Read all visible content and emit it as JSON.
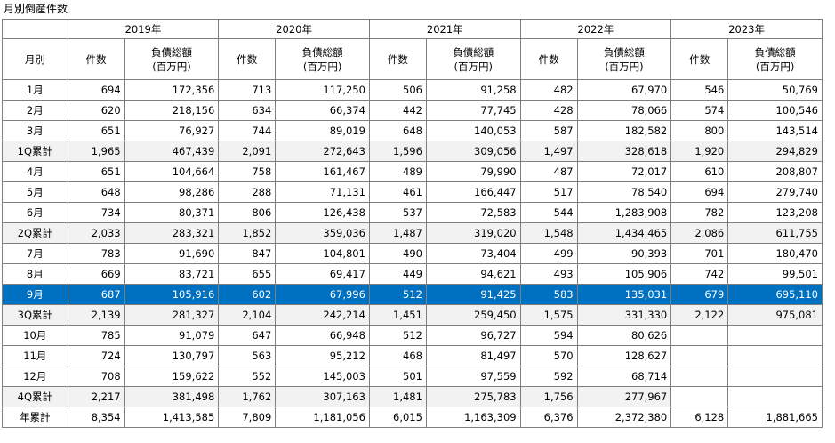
{
  "title": "月別倒産件数",
  "years": [
    "2019年",
    "2020年",
    "2021年",
    "2022年",
    "2023年"
  ],
  "header": {
    "month": "月別",
    "count": "件数",
    "amount_line1": "負債総額",
    "amount_line2": "(百万円)"
  },
  "rows": [
    {
      "label": "1月",
      "type": "normal",
      "cells": [
        [
          "694",
          "172,356"
        ],
        [
          "713",
          "117,250"
        ],
        [
          "506",
          "91,258"
        ],
        [
          "482",
          "67,970"
        ],
        [
          "546",
          "50,769"
        ]
      ]
    },
    {
      "label": "2月",
      "type": "normal",
      "cells": [
        [
          "620",
          "218,156"
        ],
        [
          "634",
          "66,374"
        ],
        [
          "442",
          "77,745"
        ],
        [
          "428",
          "78,066"
        ],
        [
          "574",
          "100,546"
        ]
      ]
    },
    {
      "label": "3月",
      "type": "normal",
      "cells": [
        [
          "651",
          "76,927"
        ],
        [
          "744",
          "89,019"
        ],
        [
          "648",
          "140,053"
        ],
        [
          "587",
          "182,582"
        ],
        [
          "800",
          "143,514"
        ]
      ]
    },
    {
      "label": "1Q累計",
      "type": "summary",
      "cells": [
        [
          "1,965",
          "467,439"
        ],
        [
          "2,091",
          "272,643"
        ],
        [
          "1,596",
          "309,056"
        ],
        [
          "1,497",
          "328,618"
        ],
        [
          "1,920",
          "294,829"
        ]
      ]
    },
    {
      "label": "4月",
      "type": "normal",
      "cells": [
        [
          "651",
          "104,664"
        ],
        [
          "758",
          "161,467"
        ],
        [
          "489",
          "79,990"
        ],
        [
          "487",
          "72,017"
        ],
        [
          "610",
          "208,807"
        ]
      ]
    },
    {
      "label": "5月",
      "type": "normal",
      "cells": [
        [
          "648",
          "98,286"
        ],
        [
          "288",
          "71,131"
        ],
        [
          "461",
          "166,447"
        ],
        [
          "517",
          "78,540"
        ],
        [
          "694",
          "279,740"
        ]
      ]
    },
    {
      "label": "6月",
      "type": "normal",
      "cells": [
        [
          "734",
          "80,371"
        ],
        [
          "806",
          "126,438"
        ],
        [
          "537",
          "72,583"
        ],
        [
          "544",
          "1,283,908"
        ],
        [
          "782",
          "123,208"
        ]
      ]
    },
    {
      "label": "2Q累計",
      "type": "summary",
      "cells": [
        [
          "2,033",
          "283,321"
        ],
        [
          "1,852",
          "359,036"
        ],
        [
          "1,487",
          "319,020"
        ],
        [
          "1,548",
          "1,434,465"
        ],
        [
          "2,086",
          "611,755"
        ]
      ]
    },
    {
      "label": "7月",
      "type": "normal",
      "cells": [
        [
          "783",
          "91,690"
        ],
        [
          "847",
          "104,801"
        ],
        [
          "490",
          "73,404"
        ],
        [
          "499",
          "90,393"
        ],
        [
          "701",
          "180,470"
        ]
      ]
    },
    {
      "label": "8月",
      "type": "normal",
      "cells": [
        [
          "669",
          "83,721"
        ],
        [
          "655",
          "69,417"
        ],
        [
          "449",
          "94,621"
        ],
        [
          "493",
          "105,906"
        ],
        [
          "742",
          "99,501"
        ]
      ]
    },
    {
      "label": "9月",
      "type": "highlight",
      "cells": [
        [
          "687",
          "105,916"
        ],
        [
          "602",
          "67,996"
        ],
        [
          "512",
          "91,425"
        ],
        [
          "583",
          "135,031"
        ],
        [
          "679",
          "695,110"
        ]
      ]
    },
    {
      "label": "3Q累計",
      "type": "summary",
      "cells": [
        [
          "2,139",
          "281,327"
        ],
        [
          "2,104",
          "242,214"
        ],
        [
          "1,451",
          "259,450"
        ],
        [
          "1,575",
          "331,330"
        ],
        [
          "2,122",
          "975,081"
        ]
      ]
    },
    {
      "label": "10月",
      "type": "normal",
      "cells": [
        [
          "785",
          "91,079"
        ],
        [
          "647",
          "66,948"
        ],
        [
          "512",
          "96,727"
        ],
        [
          "594",
          "80,626"
        ],
        [
          "",
          ""
        ]
      ]
    },
    {
      "label": "11月",
      "type": "normal",
      "cells": [
        [
          "724",
          "130,797"
        ],
        [
          "563",
          "95,212"
        ],
        [
          "468",
          "81,497"
        ],
        [
          "570",
          "128,627"
        ],
        [
          "",
          ""
        ]
      ]
    },
    {
      "label": "12月",
      "type": "normal",
      "cells": [
        [
          "708",
          "159,622"
        ],
        [
          "552",
          "145,003"
        ],
        [
          "501",
          "97,559"
        ],
        [
          "592",
          "68,714"
        ],
        [
          "",
          ""
        ]
      ]
    },
    {
      "label": "4Q累計",
      "type": "summary",
      "cells": [
        [
          "2,217",
          "381,498"
        ],
        [
          "1,762",
          "307,163"
        ],
        [
          "1,481",
          "275,783"
        ],
        [
          "1,756",
          "277,967"
        ],
        [
          "",
          ""
        ]
      ]
    },
    {
      "label": "年累計",
      "type": "normal",
      "cells": [
        [
          "8,354",
          "1,413,585"
        ],
        [
          "7,809",
          "1,181,056"
        ],
        [
          "6,015",
          "1,163,309"
        ],
        [
          "6,376",
          "2,372,380"
        ],
        [
          "6,128",
          "1,881,665"
        ]
      ]
    }
  ],
  "colors": {
    "highlight_bg": "#0070c0",
    "highlight_text": "#ffffff",
    "summary_bg": "#f2f2f2",
    "border": "#7f7f7f"
  }
}
